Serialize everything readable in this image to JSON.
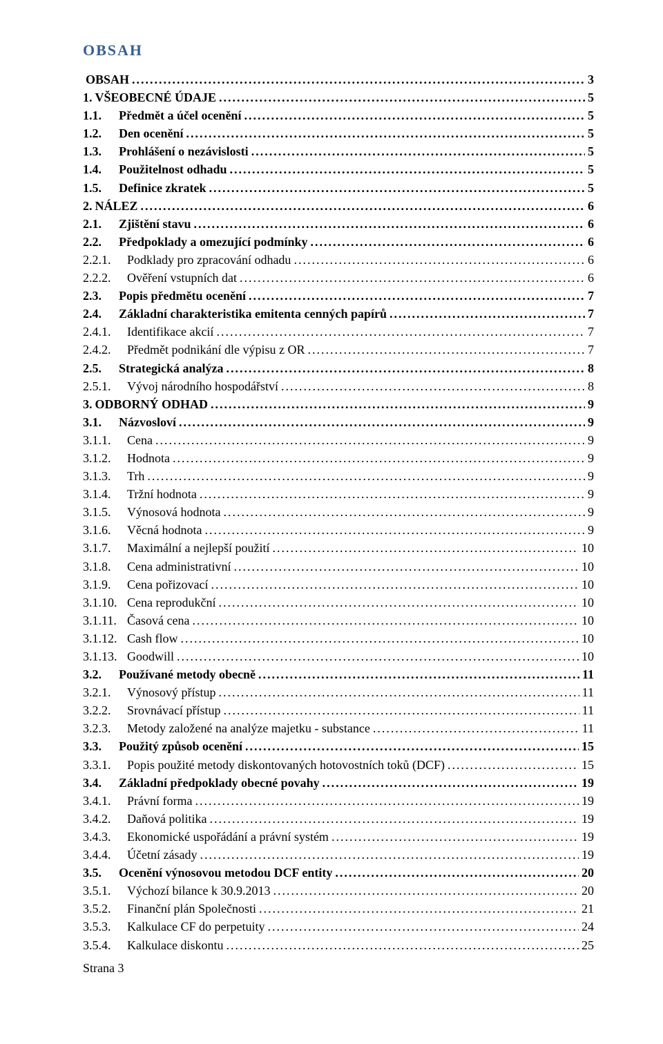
{
  "title": "OBSAH",
  "footer": "Strana 3",
  "entries": [
    {
      "level": 0,
      "num": "",
      "label": "OBSAH",
      "page": "3",
      "no_num": true
    },
    {
      "level": 0,
      "num": "1.",
      "label": "VŠEOBECNÉ ÚDAJE",
      "page": "5"
    },
    {
      "level": 1,
      "num": "1.1.",
      "label": "Předmět a účel ocenění",
      "page": "5"
    },
    {
      "level": 1,
      "num": "1.2.",
      "label": "Den ocenění",
      "page": "5"
    },
    {
      "level": 1,
      "num": "1.3.",
      "label": "Prohlášení o nezávislosti",
      "page": "5"
    },
    {
      "level": 1,
      "num": "1.4.",
      "label": "Použitelnost odhadu",
      "page": "5"
    },
    {
      "level": 1,
      "num": "1.5.",
      "label": "Definice zkratek",
      "page": "5"
    },
    {
      "level": 0,
      "num": "2.",
      "label": "NÁLEZ",
      "page": "6"
    },
    {
      "level": 1,
      "num": "2.1.",
      "label": "Zjištění stavu",
      "page": "6"
    },
    {
      "level": 1,
      "num": "2.2.",
      "label": "Předpoklady a omezující podmínky",
      "page": "6"
    },
    {
      "level": 2,
      "num": "2.2.1.",
      "label": "Podklady pro zpracování odhadu",
      "page": "6"
    },
    {
      "level": 2,
      "num": "2.2.2.",
      "label": "Ověření vstupních dat",
      "page": "6"
    },
    {
      "level": 1,
      "num": "2.3.",
      "label": "Popis předmětu ocenění",
      "page": "7"
    },
    {
      "level": 1,
      "num": "2.4.",
      "label": "Základní charakteristika emitenta cenných papírů",
      "page": "7"
    },
    {
      "level": 2,
      "num": "2.4.1.",
      "label": "Identifikace akcií",
      "page": "7"
    },
    {
      "level": 2,
      "num": "2.4.2.",
      "label": "Předmět podnikání dle výpisu z OR",
      "page": "7"
    },
    {
      "level": 1,
      "num": "2.5.",
      "label": "Strategická analýza",
      "page": "8"
    },
    {
      "level": 2,
      "num": "2.5.1.",
      "label": "Vývoj národního hospodářství",
      "page": "8"
    },
    {
      "level": 0,
      "num": "3.",
      "label": "ODBORNÝ ODHAD",
      "page": "9"
    },
    {
      "level": 1,
      "num": "3.1.",
      "label": "Názvosloví",
      "page": "9"
    },
    {
      "level": 2,
      "num": "3.1.1.",
      "label": "Cena",
      "page": "9"
    },
    {
      "level": 2,
      "num": "3.1.2.",
      "label": "Hodnota",
      "page": "9"
    },
    {
      "level": 2,
      "num": "3.1.3.",
      "label": "Trh",
      "page": "9"
    },
    {
      "level": 2,
      "num": "3.1.4.",
      "label": "Tržní hodnota",
      "page": "9"
    },
    {
      "level": 2,
      "num": "3.1.5.",
      "label": "Výnosová hodnota",
      "page": "9"
    },
    {
      "level": 2,
      "num": "3.1.6.",
      "label": "Věcná hodnota",
      "page": "9"
    },
    {
      "level": 2,
      "num": "3.1.7.",
      "label": "Maximální a nejlepší použití",
      "page": "10"
    },
    {
      "level": 2,
      "num": "3.1.8.",
      "label": "Cena administrativní",
      "page": "10"
    },
    {
      "level": 2,
      "num": "3.1.9.",
      "label": "Cena pořizovací",
      "page": "10"
    },
    {
      "level": 2,
      "num": "3.1.10.",
      "label": "Cena reprodukční",
      "page": "10"
    },
    {
      "level": 2,
      "num": "3.1.11.",
      "label": "Časová cena",
      "page": "10"
    },
    {
      "level": 2,
      "num": "3.1.12.",
      "label": "Cash flow",
      "page": "10"
    },
    {
      "level": 2,
      "num": "3.1.13.",
      "label": "Goodwill",
      "page": "10"
    },
    {
      "level": 1,
      "num": "3.2.",
      "label": "Používané metody obecně",
      "page": "11"
    },
    {
      "level": 2,
      "num": "3.2.1.",
      "label": "Výnosový přístup",
      "page": "11"
    },
    {
      "level": 2,
      "num": "3.2.2.",
      "label": "Srovnávací přístup",
      "page": "11"
    },
    {
      "level": 2,
      "num": "3.2.3.",
      "label": "Metody založené na analýze majetku - substance",
      "page": "11"
    },
    {
      "level": 1,
      "num": "3.3.",
      "label": "Použitý způsob ocenění",
      "page": "15"
    },
    {
      "level": 2,
      "num": "3.3.1.",
      "label": "Popis použité metody diskontovaných hotovostních toků (DCF)",
      "page": "15"
    },
    {
      "level": 1,
      "num": "3.4.",
      "label": "Základní předpoklady obecné povahy",
      "page": "19"
    },
    {
      "level": 2,
      "num": "3.4.1.",
      "label": "Právní forma",
      "page": "19"
    },
    {
      "level": 2,
      "num": "3.4.2.",
      "label": "Daňová politika",
      "page": "19"
    },
    {
      "level": 2,
      "num": "3.4.3.",
      "label": "Ekonomické uspořádání a právní systém",
      "page": "19"
    },
    {
      "level": 2,
      "num": "3.4.4.",
      "label": "Účetní zásady",
      "page": "19"
    },
    {
      "level": 1,
      "num": "3.5.",
      "label": "Ocenění výnosovou metodou DCF entity",
      "page": "20"
    },
    {
      "level": 2,
      "num": "3.5.1.",
      "label": "Výchozí bilance k 30.9.2013",
      "page": "20"
    },
    {
      "level": 2,
      "num": "3.5.2.",
      "label": "Finanční plán Společnosti",
      "page": "21"
    },
    {
      "level": 2,
      "num": "3.5.3.",
      "label": "Kalkulace CF do perpetuity",
      "page": "24"
    },
    {
      "level": 2,
      "num": "3.5.4.",
      "label": "Kalkulace diskontu",
      "page": "25"
    }
  ]
}
